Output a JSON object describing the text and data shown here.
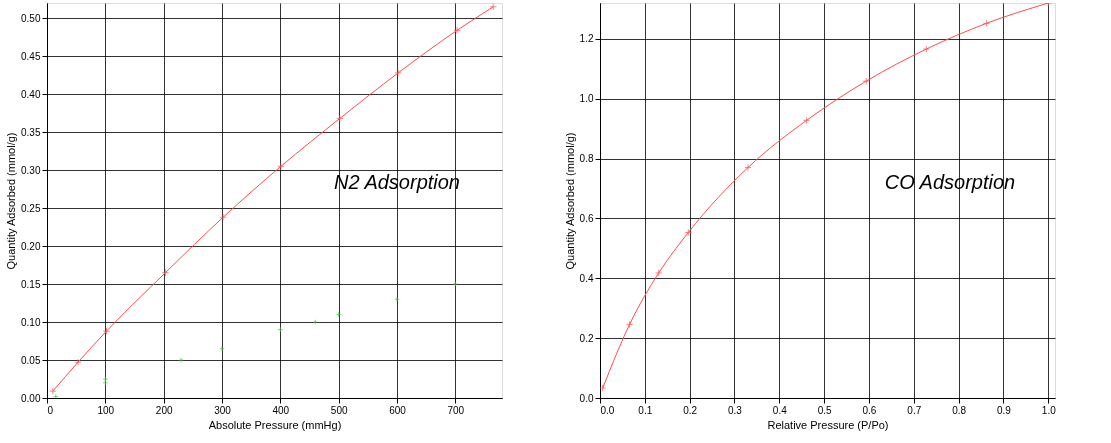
{
  "chart_data": [
    {
      "type": "line",
      "xlabel": "Absolute Pressure (mmHg)",
      "ylabel": "Quantity Adsorbed (mmol/g)",
      "annotations": [
        "N2 Adsorption"
      ],
      "grid": true,
      "marker": "cross",
      "xlim": [
        0,
        780
      ],
      "xticks": [
        0,
        100,
        200,
        300,
        400,
        500,
        600,
        700
      ],
      "ylim": [
        0,
        0.52
      ],
      "yticks": [
        {
          "value": 0,
          "label": "0.00"
        },
        0.05,
        {
          "value": 0.1,
          "label": "0.10"
        },
        0.15,
        {
          "value": 0.2,
          "label": "0.20"
        },
        0.25,
        {
          "value": 0.3,
          "label": "0.30"
        },
        0.35,
        {
          "value": 0.4,
          "label": "0.40"
        },
        0.45,
        {
          "value": 0.5,
          "label": "0.50"
        }
      ],
      "series": [
        {
          "color": "#ff4d4d",
          "x": [
            10,
            53,
            102,
            203,
            302,
            401,
            502,
            602,
            703,
            765
          ],
          "values": [
            0.009,
            0.047,
            0.088,
            0.165,
            0.238,
            0.305,
            0.368,
            0.428,
            0.484,
            0.515
          ]
        },
        {
          "type": "scatter",
          "color": "#33cc33",
          "x": [
            15,
            100,
            100,
            230,
            300,
            400,
            460,
            500,
            600,
            700
          ],
          "values": [
            0.002,
            0.02,
            0.025,
            0.05,
            0.065,
            0.09,
            0.1,
            0.11,
            0.13,
            0.15
          ]
        }
      ]
    },
    {
      "type": "line",
      "xlabel": "Relative Pressure (P/Po)",
      "ylabel": "Quantity Adsorbed (mmol/g)",
      "annotations": [
        "CO Adsorption"
      ],
      "grid": true,
      "marker": "cross",
      "xlim": [
        0,
        1.015
      ],
      "xticks": [
        {
          "value": 0,
          "label": "0.0"
        },
        0.1,
        0.2,
        0.3,
        0.4,
        0.5,
        0.6,
        0.7,
        0.8,
        0.9,
        {
          "value": 1,
          "label": "1.0"
        }
      ],
      "ylim": [
        0,
        1.32
      ],
      "yticks": [
        {
          "value": 0,
          "label": "0.0"
        },
        0.2,
        0.4,
        0.6,
        0.8,
        {
          "value": 1,
          "label": "1.0"
        },
        1.2
      ],
      "series": [
        {
          "color": "#ff4d4d",
          "x": [
            0.006,
            0.066,
            0.131,
            0.197,
            0.33,
            0.461,
            0.594,
            0.728,
            0.862,
            1.0
          ],
          "values": [
            0.033,
            0.246,
            0.418,
            0.553,
            0.77,
            0.928,
            1.059,
            1.166,
            1.252,
            1.32
          ]
        }
      ]
    }
  ]
}
